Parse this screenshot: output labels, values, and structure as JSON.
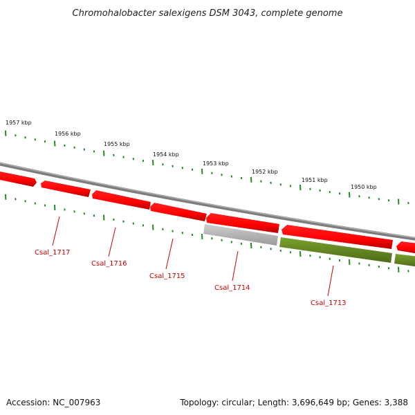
{
  "title": "Chromohalobacter salexigens DSM 3043, complete genome",
  "scale_labels": [
    "1957 kbp",
    "1956 kbp",
    "1955 kbp",
    "1954 kbp",
    "1953 kbp",
    "1952 kbp",
    "1951 kbp",
    "1950 kbp"
  ],
  "genes": [
    {
      "name": "Csal_1717",
      "strand": "forward",
      "color": "#ff0000"
    },
    {
      "name": "Csal_1716",
      "strand": "reverse",
      "color": "#ff0000"
    },
    {
      "name": "Csal_1715",
      "strand": "reverse",
      "color": "#ff0000"
    },
    {
      "name": "Csal_1714",
      "strand": "reverse",
      "color": "#ff0000"
    },
    {
      "name": "Csal_1713",
      "strand": "reverse",
      "color": "#ff0000"
    }
  ],
  "colors": {
    "backbone": "#8a8a8a",
    "gene_red": "#ff0000",
    "gene_gray": "#b4b4b4",
    "gene_olive": "#6b8e23",
    "tick_green": "#228b22",
    "label_red": "#cc0000"
  },
  "footer": {
    "accession": "Accession: NC_007963",
    "summary": "Topology: circular; Length: 3,696,649 bp; Genes: 3,388"
  }
}
